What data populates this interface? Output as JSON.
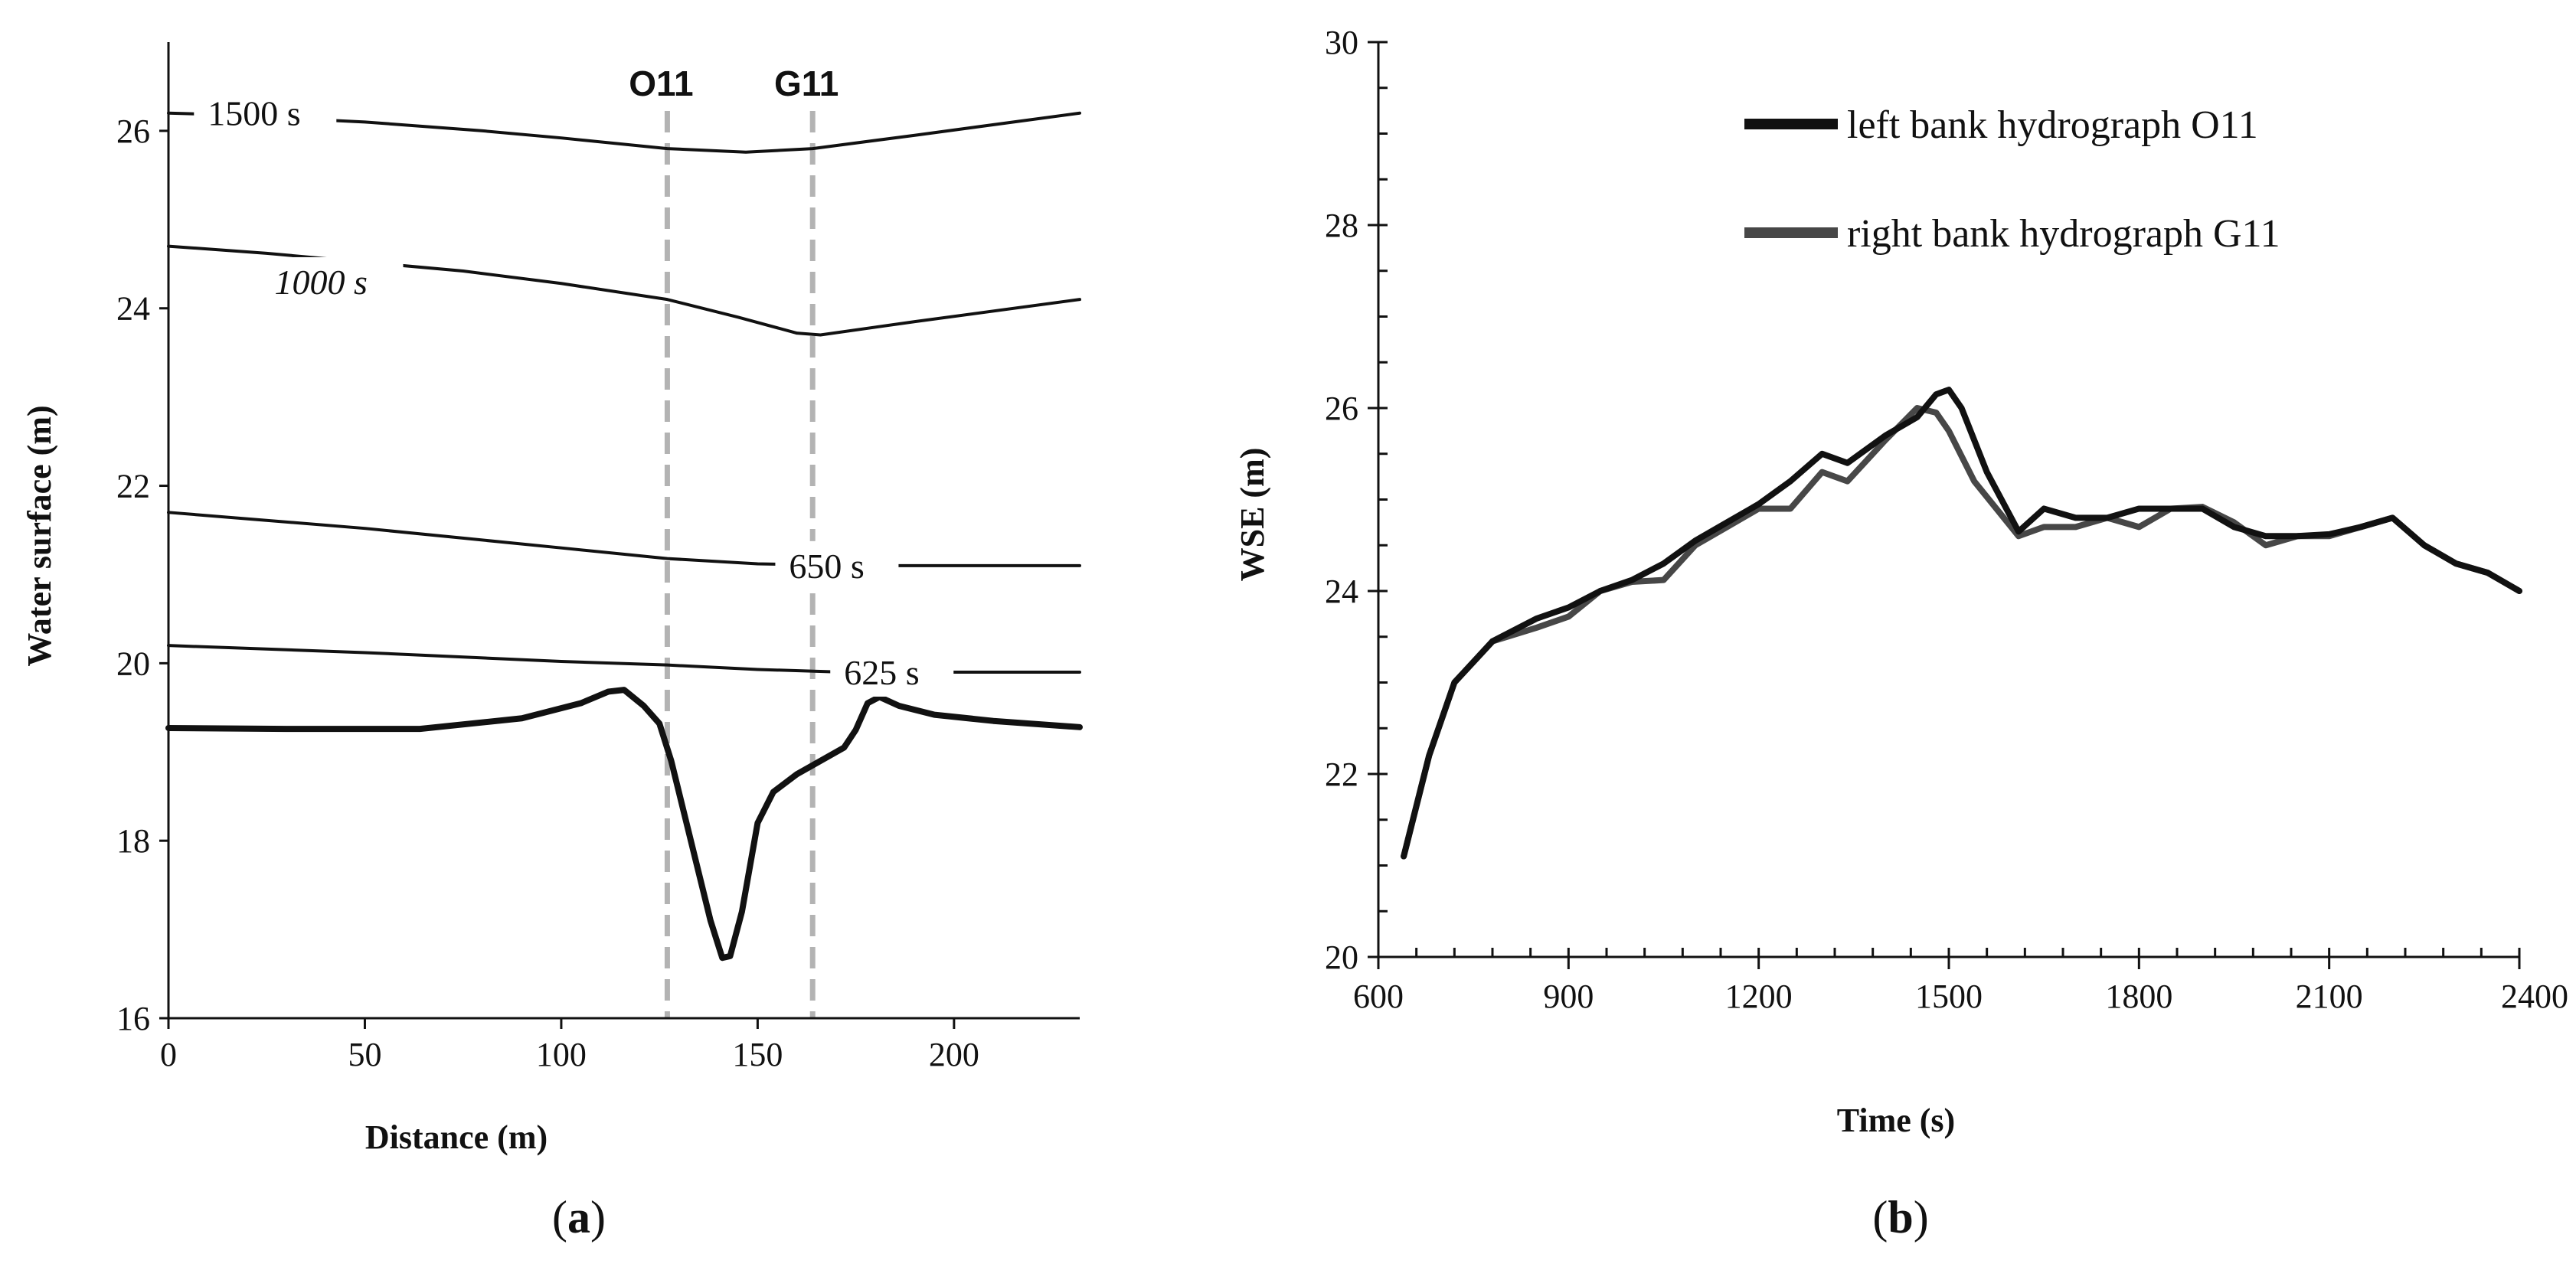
{
  "chart_data": [
    {
      "id": "a",
      "type": "line",
      "caption_open": "(",
      "caption_letter": "a",
      "caption_close": ")",
      "xlabel": "Distance (m)",
      "ylabel": "Water surface (m)",
      "xlim": [
        0,
        232
      ],
      "ylim": [
        16,
        27
      ],
      "xticks": [
        0,
        50,
        100,
        150,
        200
      ],
      "yticks": [
        16,
        18,
        20,
        22,
        24,
        26
      ],
      "markers": [
        {
          "label": "O11",
          "x": 127
        },
        {
          "label": "G11",
          "x": 164
        }
      ],
      "series": [
        {
          "label": "1500 s",
          "label_pos": [
            10,
            26.2
          ],
          "color": "#111111",
          "width": 4,
          "points": [
            [
              0,
              26.2
            ],
            [
              8,
              26.19
            ],
            [
              50,
              26.1
            ],
            [
              80,
              26.0
            ],
            [
              100,
              25.92
            ],
            [
              127,
              25.8
            ],
            [
              147,
              25.76
            ],
            [
              164,
              25.8
            ],
            [
              190,
              25.95
            ],
            [
              232,
              26.2
            ]
          ]
        },
        {
          "label": "1000 s",
          "label_pos": [
            27,
            24.3
          ],
          "color": "#111111",
          "width": 4,
          "points": [
            [
              0,
              24.7
            ],
            [
              25,
              24.62
            ],
            [
              75,
              24.42
            ],
            [
              100,
              24.28
            ],
            [
              127,
              24.1
            ],
            [
              145,
              23.9
            ],
            [
              160,
              23.72
            ],
            [
              166,
              23.7
            ],
            [
              190,
              23.85
            ],
            [
              232,
              24.1
            ]
          ]
        },
        {
          "label": "650 s",
          "label_pos": [
            158,
            21.1
          ],
          "color": "#111111",
          "width": 4,
          "points": [
            [
              0,
              21.7
            ],
            [
              50,
              21.52
            ],
            [
              100,
              21.3
            ],
            [
              127,
              21.18
            ],
            [
              150,
              21.12
            ],
            [
              180,
              21.1
            ],
            [
              232,
              21.1
            ]
          ]
        },
        {
          "label": "625 s",
          "label_pos": [
            172,
            19.9
          ],
          "color": "#111111",
          "width": 4,
          "points": [
            [
              0,
              20.2
            ],
            [
              50,
              20.12
            ],
            [
              100,
              20.02
            ],
            [
              127,
              19.98
            ],
            [
              150,
              19.93
            ],
            [
              172,
              19.9
            ],
            [
              232,
              19.9
            ]
          ]
        },
        {
          "label": "",
          "color": "#111111",
          "width": 8,
          "points": [
            [
              0,
              19.27
            ],
            [
              30,
              19.26
            ],
            [
              64,
              19.26
            ],
            [
              90,
              19.38
            ],
            [
              105,
              19.55
            ],
            [
              112,
              19.68
            ],
            [
              116,
              19.7
            ],
            [
              121,
              19.52
            ],
            [
              125,
              19.32
            ],
            [
              128,
              18.9
            ],
            [
              133,
              18.0
            ],
            [
              138,
              17.1
            ],
            [
              141,
              16.68
            ],
            [
              143,
              16.7
            ],
            [
              146,
              17.2
            ],
            [
              150,
              18.2
            ],
            [
              154,
              18.55
            ],
            [
              160,
              18.75
            ],
            [
              166,
              18.9
            ],
            [
              172,
              19.05
            ],
            [
              175,
              19.25
            ],
            [
              178,
              19.55
            ],
            [
              181,
              19.62
            ],
            [
              186,
              19.52
            ],
            [
              195,
              19.42
            ],
            [
              210,
              19.35
            ],
            [
              232,
              19.28
            ]
          ]
        }
      ]
    },
    {
      "id": "b",
      "type": "line",
      "caption_open": "(",
      "caption_letter": "b",
      "caption_close": ")",
      "xlabel": "Time (s)",
      "ylabel": "WSE (m)",
      "xlim": [
        600,
        2400
      ],
      "ylim": [
        20,
        30
      ],
      "xticks": [
        600,
        900,
        1200,
        1500,
        1800,
        2100,
        2400
      ],
      "yticks": [
        20,
        22,
        24,
        26,
        28,
        30
      ],
      "legend_position": "top-right",
      "series": [
        {
          "name": "left bank hydrograph O11",
          "color": "#111111",
          "width": 8,
          "points": [
            [
              640,
              21.1
            ],
            [
              680,
              22.2
            ],
            [
              720,
              23.0
            ],
            [
              780,
              23.45
            ],
            [
              850,
              23.7
            ],
            [
              900,
              23.82
            ],
            [
              950,
              24.0
            ],
            [
              1000,
              24.12
            ],
            [
              1050,
              24.3
            ],
            [
              1100,
              24.55
            ],
            [
              1150,
              24.75
            ],
            [
              1200,
              24.95
            ],
            [
              1250,
              25.2
            ],
            [
              1300,
              25.5
            ],
            [
              1340,
              25.4
            ],
            [
              1400,
              25.7
            ],
            [
              1450,
              25.9
            ],
            [
              1480,
              26.15
            ],
            [
              1500,
              26.2
            ],
            [
              1520,
              26.0
            ],
            [
              1560,
              25.3
            ],
            [
              1610,
              24.65
            ],
            [
              1650,
              24.9
            ],
            [
              1700,
              24.8
            ],
            [
              1750,
              24.8
            ],
            [
              1800,
              24.9
            ],
            [
              1850,
              24.9
            ],
            [
              1900,
              24.9
            ],
            [
              1950,
              24.7
            ],
            [
              2000,
              24.6
            ],
            [
              2050,
              24.6
            ],
            [
              2100,
              24.62
            ],
            [
              2150,
              24.7
            ],
            [
              2200,
              24.8
            ],
            [
              2250,
              24.5
            ],
            [
              2300,
              24.3
            ],
            [
              2350,
              24.2
            ],
            [
              2400,
              24.0
            ]
          ]
        },
        {
          "name": "right bank hydrograph G11",
          "color": "#474747",
          "width": 8,
          "points": [
            [
              640,
              21.1
            ],
            [
              680,
              22.2
            ],
            [
              720,
              23.0
            ],
            [
              780,
              23.45
            ],
            [
              850,
              23.6
            ],
            [
              900,
              23.72
            ],
            [
              950,
              24.0
            ],
            [
              1000,
              24.1
            ],
            [
              1050,
              24.12
            ],
            [
              1100,
              24.5
            ],
            [
              1150,
              24.7
            ],
            [
              1200,
              24.9
            ],
            [
              1250,
              24.9
            ],
            [
              1300,
              25.3
            ],
            [
              1340,
              25.2
            ],
            [
              1400,
              25.65
            ],
            [
              1450,
              26.0
            ],
            [
              1480,
              25.95
            ],
            [
              1500,
              25.75
            ],
            [
              1540,
              25.2
            ],
            [
              1610,
              24.6
            ],
            [
              1650,
              24.7
            ],
            [
              1700,
              24.7
            ],
            [
              1750,
              24.8
            ],
            [
              1800,
              24.7
            ],
            [
              1850,
              24.9
            ],
            [
              1900,
              24.92
            ],
            [
              1950,
              24.75
            ],
            [
              2000,
              24.5
            ],
            [
              2050,
              24.6
            ],
            [
              2100,
              24.6
            ],
            [
              2150,
              24.7
            ],
            [
              2200,
              24.8
            ],
            [
              2250,
              24.5
            ],
            [
              2300,
              24.3
            ],
            [
              2350,
              24.2
            ],
            [
              2400,
              24.0
            ]
          ]
        }
      ]
    }
  ]
}
